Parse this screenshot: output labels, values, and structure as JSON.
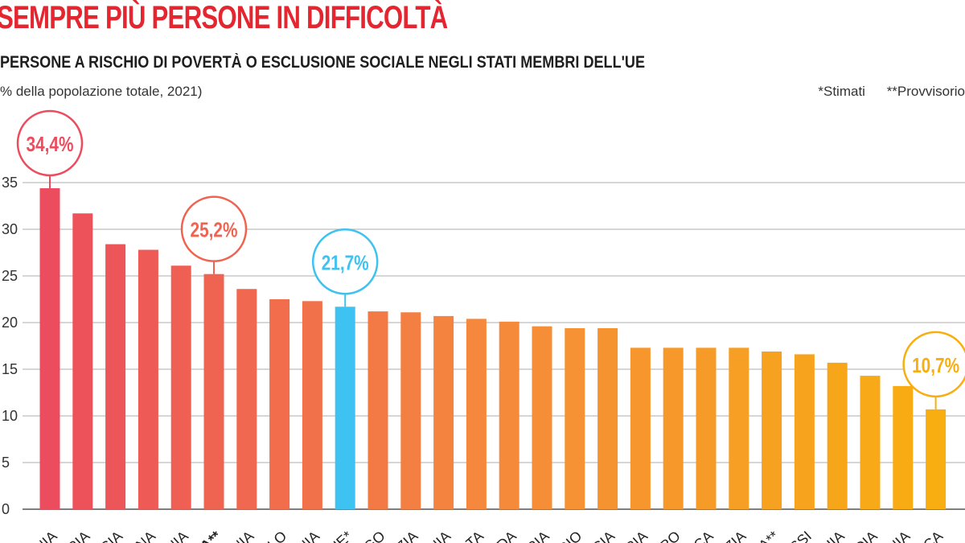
{
  "header": {
    "title": "SEMPRE PIÙ PERSONE IN DIFFICOLTÀ",
    "subtitle": "PERSONE A RISCHIO DI POVERTÀ O ESCLUSIONE SOCIALE NEGLI STATI MEMBRI DELL'UE",
    "unit_note": "% della popolazione totale, 2021)",
    "note_estimated": "*Stimati",
    "note_provisional": "**Provvisorio"
  },
  "colors": {
    "title": "#e3262f",
    "gradient_start": "#ec4d5e",
    "gradient_mid": "#f58a3c",
    "gradient_end": "#f8ae10",
    "eu_bar": "#3ec2f2",
    "grid": "#bdbdbd"
  },
  "chart_data": {
    "type": "bar",
    "title": "SEMPRE PIÙ PERSONE IN DIFFICOLTÀ",
    "subtitle": "PERSONE A RISCHIO DI POVERTÀ O ESCLUSIONE SOCIALE NEGLI STATI MEMBRI DELL'UE",
    "ylabel": "% della popolazione totale, 2021)",
    "ylim": [
      0,
      35
    ],
    "yticks": [
      0,
      5,
      10,
      15,
      20,
      25,
      30,
      35
    ],
    "grid": true,
    "categories": [
      "ANIA",
      "ARIA",
      "RECIA",
      "AGNA",
      "TONIA",
      "LIA**",
      "ANIA",
      "ALLO",
      "ONIA",
      "UE*",
      "RGO",
      "AZIA",
      "ANIA",
      "ALTA",
      "ANDA",
      "ERIA",
      "LGIO",
      "ANCIA",
      "TRIA",
      "IPRO",
      "ARCA",
      "EZIA",
      "NIA**",
      "ASSI",
      "ECHIA",
      "NDIA",
      "VENIA",
      "CECA"
    ],
    "values": [
      34.4,
      31.7,
      28.4,
      27.8,
      26.1,
      25.2,
      23.6,
      22.5,
      22.3,
      21.7,
      21.2,
      21.1,
      20.7,
      20.4,
      20.1,
      19.6,
      19.4,
      19.4,
      17.3,
      17.3,
      17.3,
      17.3,
      16.9,
      16.6,
      15.7,
      14.3,
      13.2,
      10.7
    ],
    "highlighted": [
      {
        "index": 0,
        "label": "34,4%"
      },
      {
        "index": 5,
        "label": "25,2%"
      },
      {
        "index": 9,
        "label": "21,7%"
      },
      {
        "index": 27,
        "label": "10,7%"
      }
    ],
    "eu_index": 9
  }
}
